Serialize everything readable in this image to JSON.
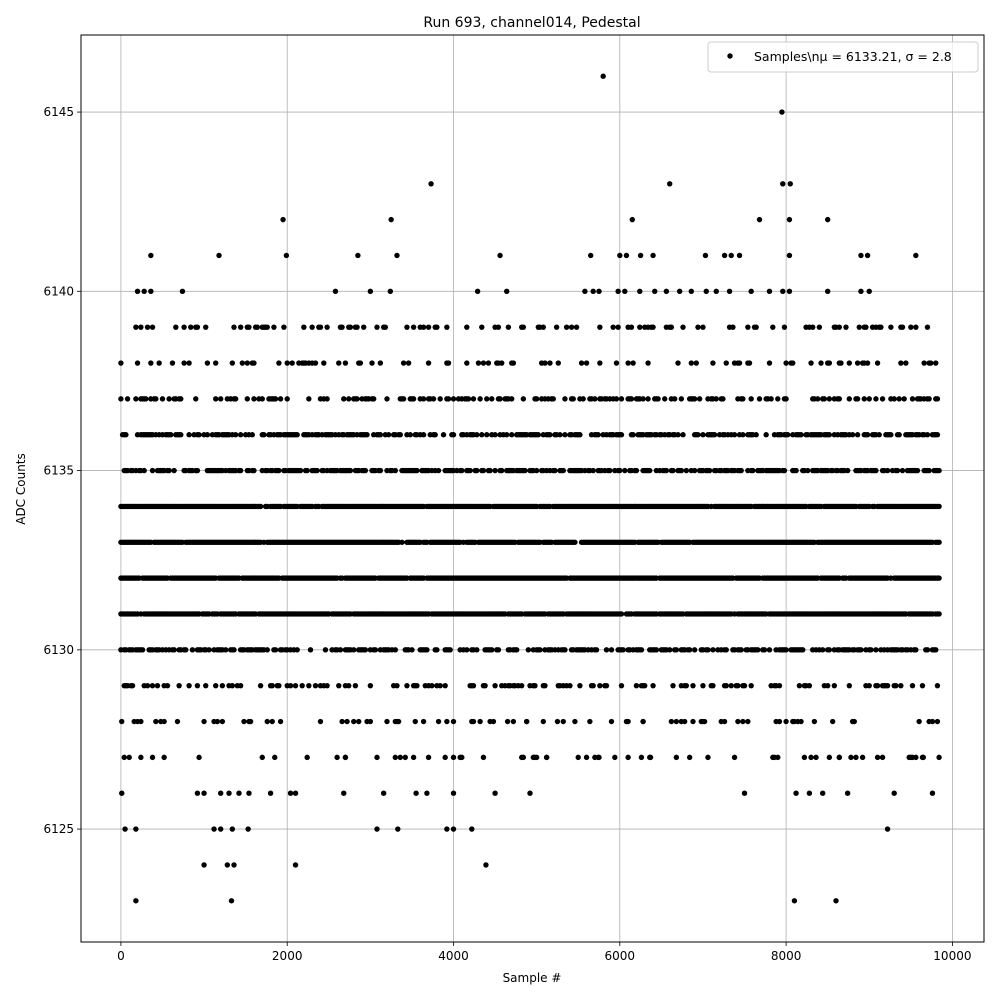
{
  "chart_data": {
    "type": "scatter",
    "title": "Run 693, channel014, Pedestal",
    "xlabel": "Sample #",
    "ylabel": "ADC Counts",
    "xlim": [
      -480,
      10380
    ],
    "ylim": [
      6121.85,
      6147.15
    ],
    "x_ticks": [
      0,
      2000,
      4000,
      6000,
      8000,
      10000
    ],
    "y_ticks": [
      6125,
      6130,
      6135,
      6140,
      6145
    ],
    "grid": true,
    "marker_color": "#000000",
    "legend": {
      "position": "top-right",
      "label": "Samples\\nμ = 6133.21, σ = 2.8"
    },
    "series": [
      {
        "name": "Samples\\nμ = 6133.21, σ = 2.8",
        "x_range": [
          0,
          9840
        ],
        "bands": [
          {
            "y": 6131,
            "density": 0.95
          },
          {
            "y": 6132,
            "density": 0.95
          },
          {
            "y": 6133,
            "density": 0.95
          },
          {
            "y": 6134,
            "density": 0.95
          },
          {
            "y": 6130,
            "density": 0.55
          },
          {
            "y": 6135,
            "density": 0.65
          },
          {
            "y": 6136,
            "density": 0.55
          },
          {
            "y": 6129,
            "density": 0.25
          },
          {
            "y": 6137,
            "density": 0.35
          },
          {
            "y": 6128,
            "density": 0.14
          },
          {
            "y": 6138,
            "density": 0.16
          },
          {
            "y": 6139,
            "density": 0.2
          },
          {
            "y": 6127,
            "density": 0.09
          }
        ],
        "points": [
          {
            "x": 180,
            "y": 6123
          },
          {
            "x": 1330,
            "y": 6123
          },
          {
            "x": 8100,
            "y": 6123
          },
          {
            "x": 8600,
            "y": 6123
          },
          {
            "x": 1000,
            "y": 6124
          },
          {
            "x": 1280,
            "y": 6124
          },
          {
            "x": 1360,
            "y": 6124
          },
          {
            "x": 2100,
            "y": 6124
          },
          {
            "x": 4390,
            "y": 6124
          },
          {
            "x": 50,
            "y": 6125
          },
          {
            "x": 180,
            "y": 6125
          },
          {
            "x": 1120,
            "y": 6125
          },
          {
            "x": 1200,
            "y": 6125
          },
          {
            "x": 1340,
            "y": 6125
          },
          {
            "x": 1530,
            "y": 6125
          },
          {
            "x": 3080,
            "y": 6125
          },
          {
            "x": 3330,
            "y": 6125
          },
          {
            "x": 3920,
            "y": 6125
          },
          {
            "x": 4000,
            "y": 6125
          },
          {
            "x": 4220,
            "y": 6125
          },
          {
            "x": 9220,
            "y": 6125
          },
          {
            "x": 10,
            "y": 6126
          },
          {
            "x": 920,
            "y": 6126
          },
          {
            "x": 1000,
            "y": 6126
          },
          {
            "x": 1200,
            "y": 6126
          },
          {
            "x": 1300,
            "y": 6126
          },
          {
            "x": 1420,
            "y": 6126
          },
          {
            "x": 1540,
            "y": 6126
          },
          {
            "x": 1800,
            "y": 6126
          },
          {
            "x": 2040,
            "y": 6126
          },
          {
            "x": 2100,
            "y": 6126
          },
          {
            "x": 2680,
            "y": 6126
          },
          {
            "x": 3160,
            "y": 6126
          },
          {
            "x": 3550,
            "y": 6126
          },
          {
            "x": 3680,
            "y": 6126
          },
          {
            "x": 4000,
            "y": 6126
          },
          {
            "x": 4500,
            "y": 6126
          },
          {
            "x": 4920,
            "y": 6126
          },
          {
            "x": 7500,
            "y": 6126
          },
          {
            "x": 8120,
            "y": 6126
          },
          {
            "x": 8280,
            "y": 6126
          },
          {
            "x": 8440,
            "y": 6126
          },
          {
            "x": 8740,
            "y": 6126
          },
          {
            "x": 9300,
            "y": 6126
          },
          {
            "x": 9760,
            "y": 6126
          },
          {
            "x": 40,
            "y": 6127
          },
          {
            "x": 240,
            "y": 6127
          },
          {
            "x": 380,
            "y": 6127
          },
          {
            "x": 940,
            "y": 6127
          },
          {
            "x": 1700,
            "y": 6127
          },
          {
            "x": 1850,
            "y": 6127
          },
          {
            "x": 2700,
            "y": 6127
          },
          {
            "x": 3420,
            "y": 6127
          },
          {
            "x": 4080,
            "y": 6127
          },
          {
            "x": 5120,
            "y": 6127
          },
          {
            "x": 5500,
            "y": 6127
          },
          {
            "x": 5750,
            "y": 6127
          },
          {
            "x": 6370,
            "y": 6127
          },
          {
            "x": 8360,
            "y": 6127
          },
          {
            "x": 8640,
            "y": 6127
          },
          {
            "x": 9160,
            "y": 6127
          },
          {
            "x": 9500,
            "y": 6127
          },
          {
            "x": 9650,
            "y": 6127
          },
          {
            "x": 10,
            "y": 6128
          },
          {
            "x": 160,
            "y": 6128
          },
          {
            "x": 520,
            "y": 6128
          },
          {
            "x": 680,
            "y": 6128
          },
          {
            "x": 2400,
            "y": 6128
          },
          {
            "x": 2860,
            "y": 6128
          },
          {
            "x": 3000,
            "y": 6128
          },
          {
            "x": 4650,
            "y": 6128
          },
          {
            "x": 4880,
            "y": 6128
          },
          {
            "x": 5250,
            "y": 6128
          },
          {
            "x": 5640,
            "y": 6128
          },
          {
            "x": 6280,
            "y": 6128
          },
          {
            "x": 6620,
            "y": 6128
          },
          {
            "x": 6880,
            "y": 6128
          },
          {
            "x": 7880,
            "y": 6128
          },
          {
            "x": 8820,
            "y": 6128
          },
          {
            "x": 9760,
            "y": 6128
          },
          {
            "x": 1950,
            "y": 6142
          },
          {
            "x": 3250,
            "y": 6142
          },
          {
            "x": 6150,
            "y": 6142
          },
          {
            "x": 7680,
            "y": 6142
          },
          {
            "x": 8040,
            "y": 6142
          },
          {
            "x": 8500,
            "y": 6142
          },
          {
            "x": 3730,
            "y": 6143
          },
          {
            "x": 6600,
            "y": 6143
          },
          {
            "x": 7960,
            "y": 6143
          },
          {
            "x": 8050,
            "y": 6143
          },
          {
            "x": 7950,
            "y": 6145
          },
          {
            "x": 5800,
            "y": 6146
          },
          {
            "x": 360,
            "y": 6141
          },
          {
            "x": 1180,
            "y": 6141
          },
          {
            "x": 1990,
            "y": 6141
          },
          {
            "x": 2850,
            "y": 6141
          },
          {
            "x": 3320,
            "y": 6141
          },
          {
            "x": 4560,
            "y": 6141
          },
          {
            "x": 5650,
            "y": 6141
          },
          {
            "x": 6000,
            "y": 6141
          },
          {
            "x": 6080,
            "y": 6141
          },
          {
            "x": 6250,
            "y": 6141
          },
          {
            "x": 6400,
            "y": 6141
          },
          {
            "x": 7030,
            "y": 6141
          },
          {
            "x": 7260,
            "y": 6141
          },
          {
            "x": 7340,
            "y": 6141
          },
          {
            "x": 7440,
            "y": 6141
          },
          {
            "x": 8040,
            "y": 6141
          },
          {
            "x": 8900,
            "y": 6141
          },
          {
            "x": 8980,
            "y": 6141
          },
          {
            "x": 9560,
            "y": 6141
          },
          {
            "x": 200,
            "y": 6140
          },
          {
            "x": 280,
            "y": 6140
          },
          {
            "x": 360,
            "y": 6140
          },
          {
            "x": 740,
            "y": 6140
          },
          {
            "x": 2580,
            "y": 6140
          },
          {
            "x": 3000,
            "y": 6140
          },
          {
            "x": 3240,
            "y": 6140
          },
          {
            "x": 4290,
            "y": 6140
          },
          {
            "x": 4640,
            "y": 6140
          },
          {
            "x": 5580,
            "y": 6140
          },
          {
            "x": 5680,
            "y": 6140
          },
          {
            "x": 5750,
            "y": 6140
          },
          {
            "x": 5980,
            "y": 6140
          },
          {
            "x": 6060,
            "y": 6140
          },
          {
            "x": 6240,
            "y": 6140
          },
          {
            "x": 6420,
            "y": 6140
          },
          {
            "x": 6560,
            "y": 6140
          },
          {
            "x": 6720,
            "y": 6140
          },
          {
            "x": 6860,
            "y": 6140
          },
          {
            "x": 7040,
            "y": 6140
          },
          {
            "x": 7160,
            "y": 6140
          },
          {
            "x": 7320,
            "y": 6140
          },
          {
            "x": 7580,
            "y": 6140
          },
          {
            "x": 7800,
            "y": 6140
          },
          {
            "x": 7960,
            "y": 6140
          },
          {
            "x": 8040,
            "y": 6140
          },
          {
            "x": 8500,
            "y": 6140
          },
          {
            "x": 8900,
            "y": 6140
          },
          {
            "x": 9000,
            "y": 6140
          }
        ]
      }
    ]
  }
}
